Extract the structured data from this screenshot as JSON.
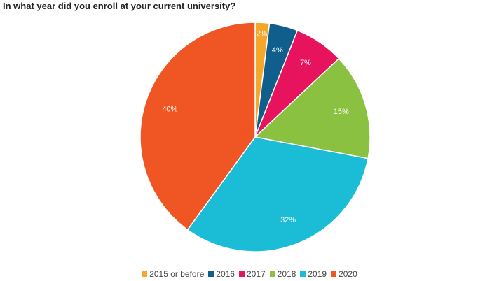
{
  "chart_data": {
    "type": "pie",
    "title": "In what year did you enroll at your current university?",
    "categories": [
      "2015 or before",
      "2016",
      "2017",
      "2018",
      "2019",
      "2020"
    ],
    "values": [
      2,
      4,
      7,
      15,
      32,
      40
    ],
    "labels": [
      "2%",
      "4%",
      "7%",
      "15%",
      "32%",
      "40%"
    ],
    "colors": [
      "#f5a72c",
      "#0f5e8c",
      "#e8135d",
      "#8bc140",
      "#1bbcd6",
      "#f05624"
    ],
    "legend_position": "bottom",
    "start_angle_deg": 0,
    "direction": "clockwise"
  }
}
